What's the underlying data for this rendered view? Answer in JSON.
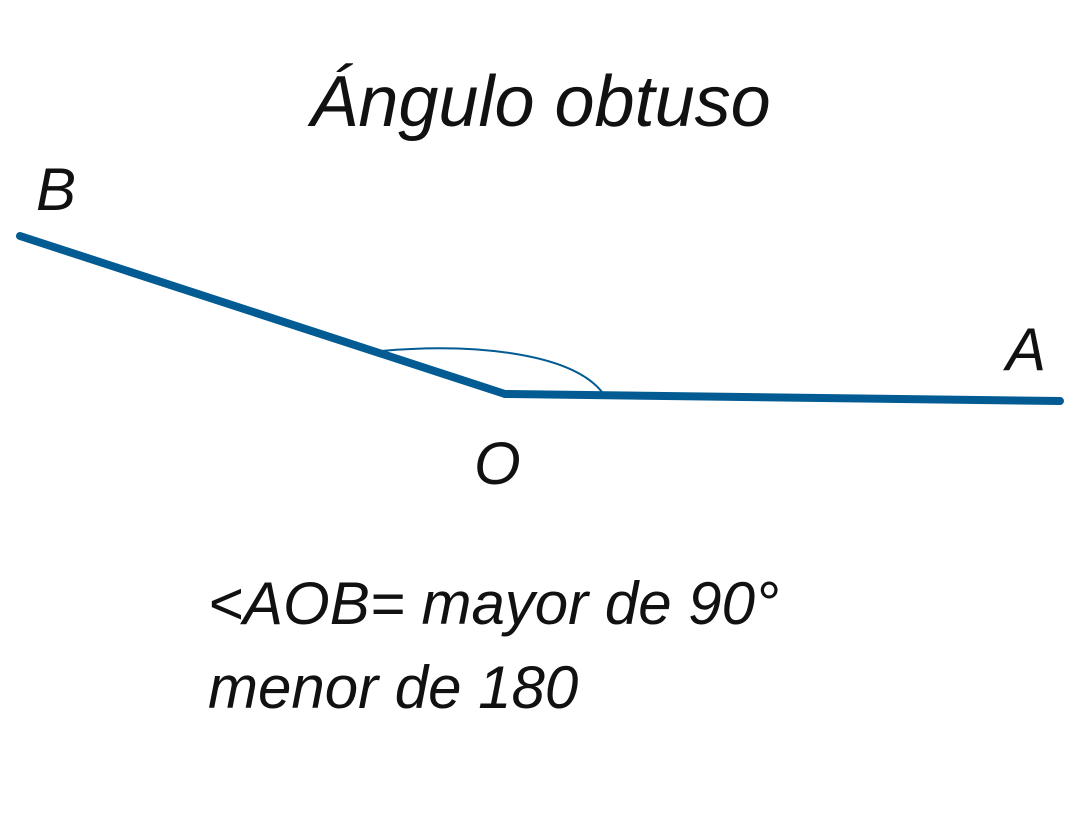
{
  "title": "Ángulo obtuso",
  "points": {
    "a": "A",
    "b": "B",
    "o": "O"
  },
  "caption": {
    "line1": "<AOB= mayor de 90°",
    "line2": "menor de 180"
  },
  "colors": {
    "ray": "#025b92",
    "text": "#111111",
    "background": "#ffffff"
  }
}
